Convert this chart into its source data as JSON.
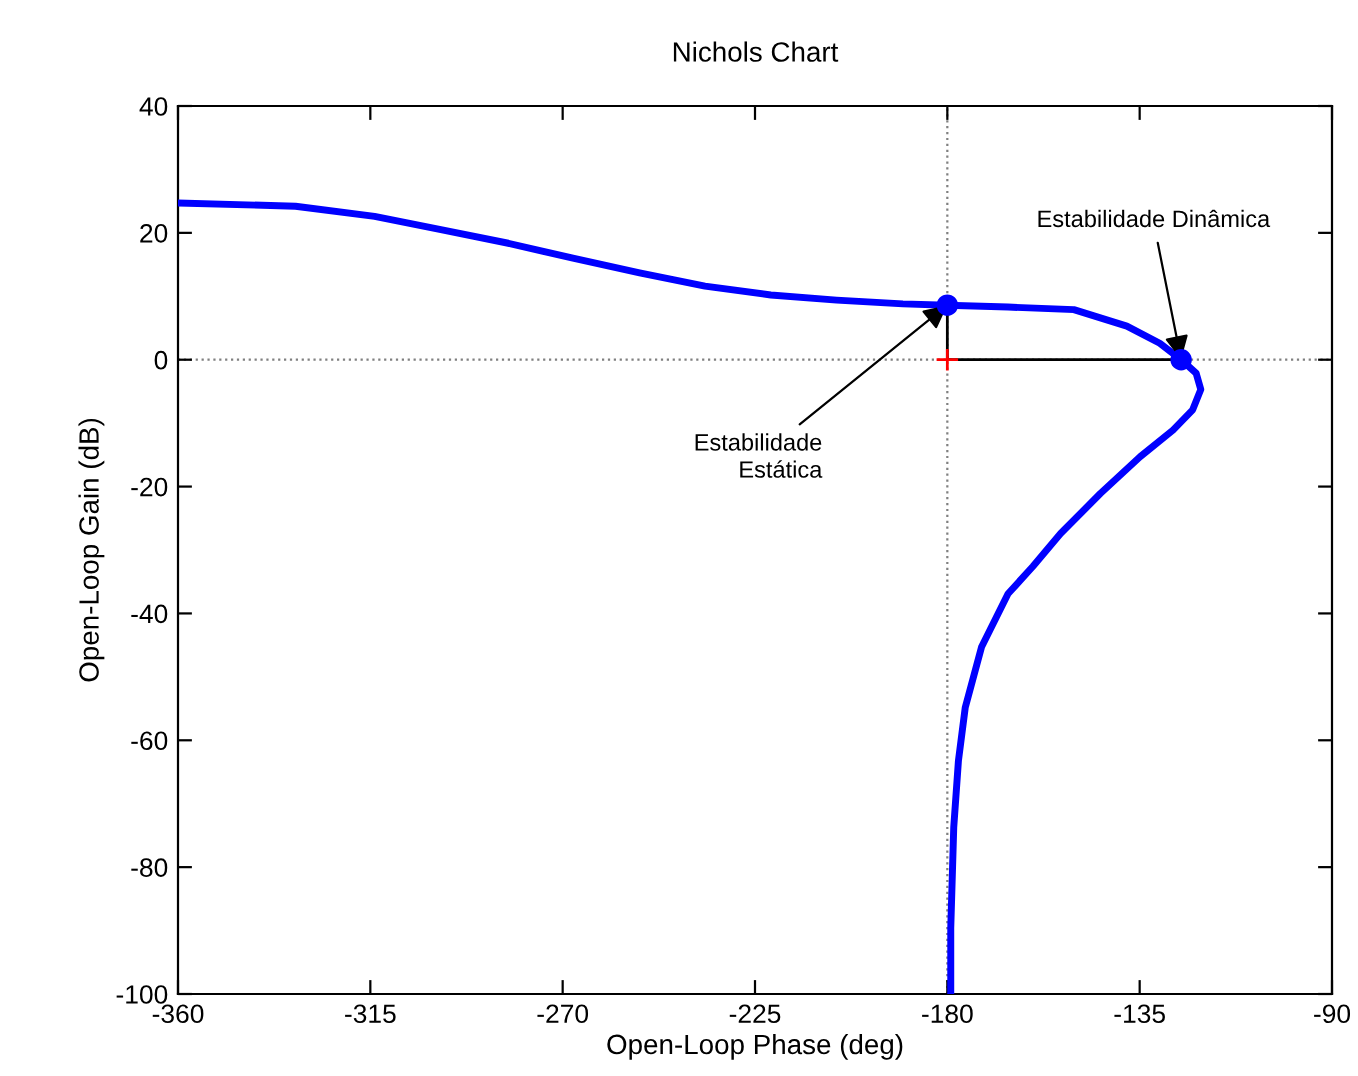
{
  "chart_data": {
    "type": "line",
    "title": "Nichols Chart",
    "xlabel": "Open-Loop Phase (deg)",
    "ylabel": "Open-Loop Gain (dB)",
    "xlim": [
      -360,
      -90
    ],
    "xticks": [
      -360,
      -315,
      -270,
      -225,
      -180,
      -135,
      -90
    ],
    "ylim": [
      -100,
      40
    ],
    "yticks": [
      -100,
      -80,
      -60,
      -40,
      -20,
      0,
      20,
      40
    ],
    "grid": false,
    "legend": false,
    "series": [
      {
        "color": "#0000ff",
        "marker": "none",
        "x": [
          -360,
          -332.5,
          -314,
          -298.5,
          -283,
          -267.6,
          -252,
          -236.7,
          -221.3,
          -205.9,
          -190.4,
          -180,
          -165.8,
          -150.4,
          -138,
          -130.3,
          -125.3,
          -121.8,
          -120.7,
          -122.6,
          -127.2,
          -134.9,
          -144.2,
          -153.5,
          -160,
          -165.8,
          -172,
          -175.8,
          -177.4,
          -178.5,
          -179.2,
          -179.2
        ],
        "values": [
          24.7,
          24.2,
          22.6,
          20.5,
          18.4,
          16.0,
          13.7,
          11.6,
          10.2,
          9.4,
          8.8,
          8.6,
          8.3,
          7.9,
          5.3,
          2.6,
          0,
          -2.1,
          -4.7,
          -7.9,
          -11.1,
          -15.3,
          -21.1,
          -27.4,
          -32.6,
          -36.9,
          -45.3,
          -54.8,
          -63.2,
          -73.7,
          -89.6,
          -100
        ]
      },
      {
        "type": "line",
        "color": "#000000",
        "marker": "none",
        "x": [
          -180,
          -180,
          -125.3
        ],
        "values": [
          8.6,
          0,
          0
        ]
      },
      {
        "type": "scatter",
        "color": "#0000ff",
        "marker": "circle",
        "x": [
          -180,
          -125.3
        ],
        "values": [
          8.6,
          0
        ]
      },
      {
        "type": "scatter",
        "color": "#ff0000",
        "marker": "cross",
        "x": [
          -180
        ],
        "values": [
          0
        ]
      }
    ],
    "ref_lines": [
      {
        "axis": "x",
        "value": -180,
        "color": "#808080",
        "line_style": "dotted"
      },
      {
        "axis": "y",
        "value": 0,
        "color": "#808080",
        "line_style": "dotted"
      }
    ],
    "annotations": [
      {
        "text": "Estabilidade\nEstática",
        "x": -180,
        "y": 8.6
      },
      {
        "text": "Estabilidade Dinâmica",
        "x": -125.3,
        "y": 0
      }
    ]
  }
}
